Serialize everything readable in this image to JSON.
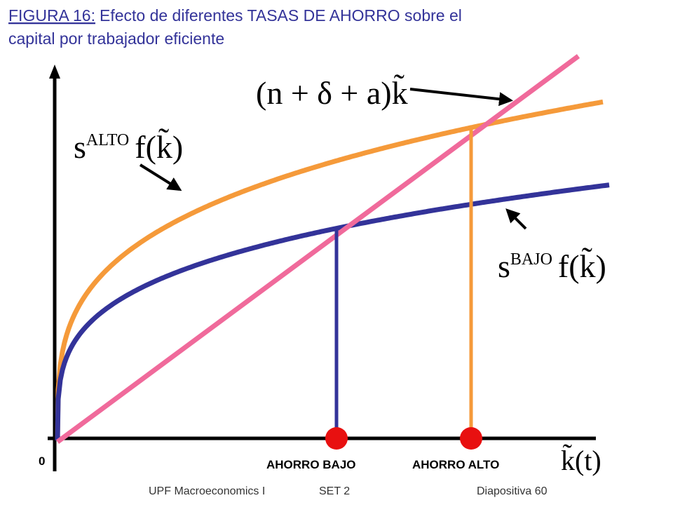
{
  "title": {
    "label": "FIGURA 16:",
    "line1": "Efecto de diferentes TASAS DE AHORRO sobre el",
    "line2": "capital por trabajador eficiente"
  },
  "curves": {
    "depreciation_line": "(n + δ + a)k̃",
    "high_saving": {
      "base": "s",
      "superscript": "ALTO",
      "function": "f(k̃)"
    },
    "low_saving": {
      "base": "s",
      "superscript": "BAJO",
      "function": "f(k̃)"
    }
  },
  "axes": {
    "origin": "0",
    "x_label": "k̃(t)"
  },
  "markers": {
    "low": "AHORRO BAJO",
    "high": "AHORRO ALTO"
  },
  "footer": {
    "course": "UPF Macroeconomics I",
    "set": "SET 2",
    "slide": "Diapositiva 60"
  }
}
